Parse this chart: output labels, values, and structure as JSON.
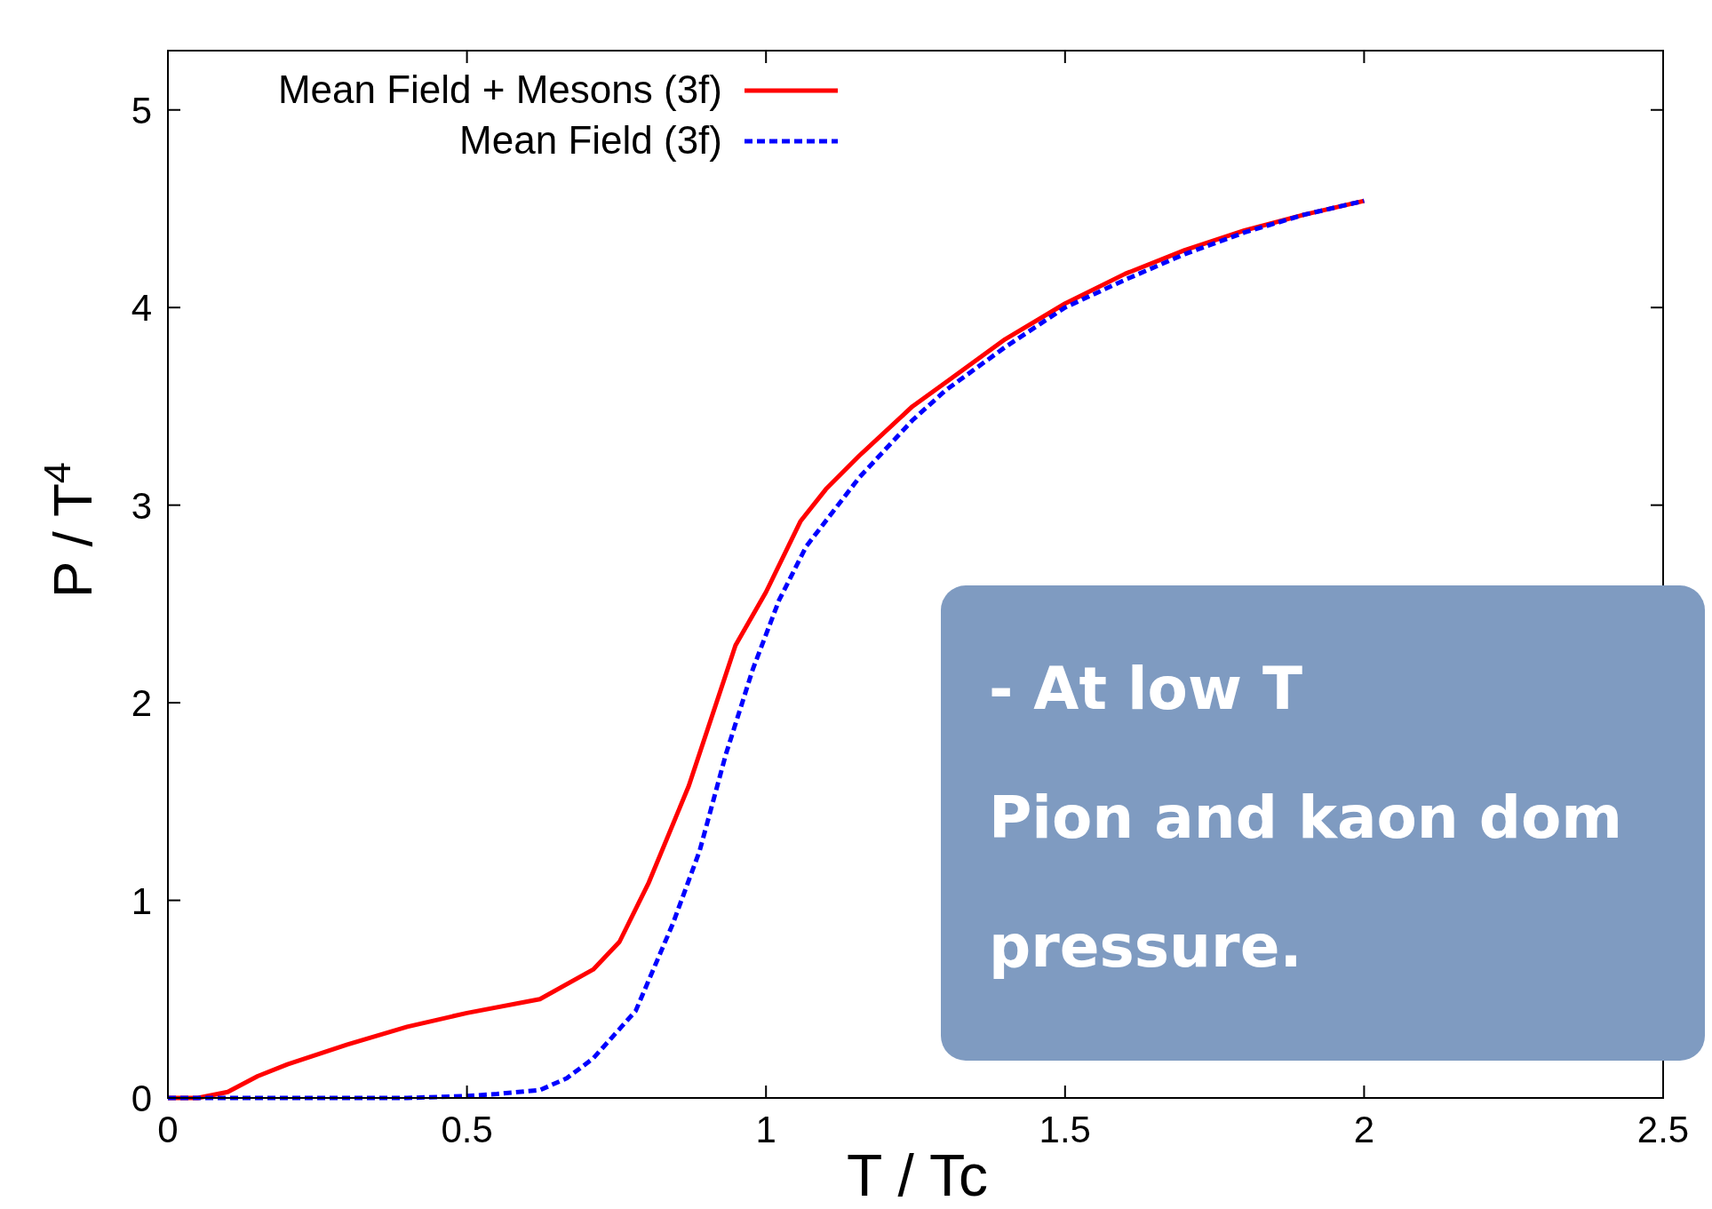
{
  "chart_data": {
    "type": "line",
    "xlabel": "T / Tc",
    "ylabel": "P / T$^{4}$",
    "xlim": [
      0,
      2.5
    ],
    "xticks": [
      0,
      0.5,
      1,
      1.5,
      2,
      2.5
    ],
    "ylim": [
      0,
      5.3
    ],
    "yticks": [
      0,
      1,
      2,
      3,
      4,
      5
    ],
    "grid": false,
    "legend": "top left",
    "series": [
      {
        "name": "Mean Field + Mesons (3f)",
        "color": "#ff0000",
        "line_style": "solid",
        "x": [
          0,
          0.05,
          0.1,
          0.15,
          0.2,
          0.3,
          0.4,
          0.5,
          0.622,
          0.711,
          0.755,
          0.804,
          0.871,
          0.949,
          1.0,
          1.058,
          1.1,
          1.156,
          1.245,
          1.3,
          1.4,
          1.5,
          1.6,
          1.7,
          1.8,
          1.9,
          2.0
        ],
        "values": [
          0,
          0,
          0.03,
          0.11,
          0.17,
          0.27,
          0.36,
          0.43,
          0.5,
          0.65,
          0.79,
          1.09,
          1.58,
          2.29,
          2.56,
          2.92,
          3.08,
          3.25,
          3.5,
          3.62,
          3.84,
          4.02,
          4.17,
          4.29,
          4.39,
          4.47,
          4.54
        ]
      },
      {
        "name": "Mean Field (3f)",
        "color": "#0000ff",
        "line_style": "dashed",
        "x": [
          0,
          0.2,
          0.4,
          0.5,
          0.55,
          0.622,
          0.667,
          0.711,
          0.782,
          0.844,
          0.889,
          0.933,
          0.978,
          1.022,
          1.067,
          1.156,
          1.245,
          1.3,
          1.4,
          1.5,
          1.6,
          1.7,
          1.8,
          1.9,
          2.0
        ],
        "values": [
          0,
          0,
          0,
          0.01,
          0.02,
          0.04,
          0.1,
          0.2,
          0.44,
          0.88,
          1.25,
          1.74,
          2.17,
          2.52,
          2.79,
          3.14,
          3.43,
          3.58,
          3.8,
          4.0,
          4.14,
          4.27,
          4.38,
          4.47,
          4.54
        ]
      }
    ],
    "annotations": [
      "- At low T",
      "Pion and kaon dom",
      "pressure."
    ]
  }
}
